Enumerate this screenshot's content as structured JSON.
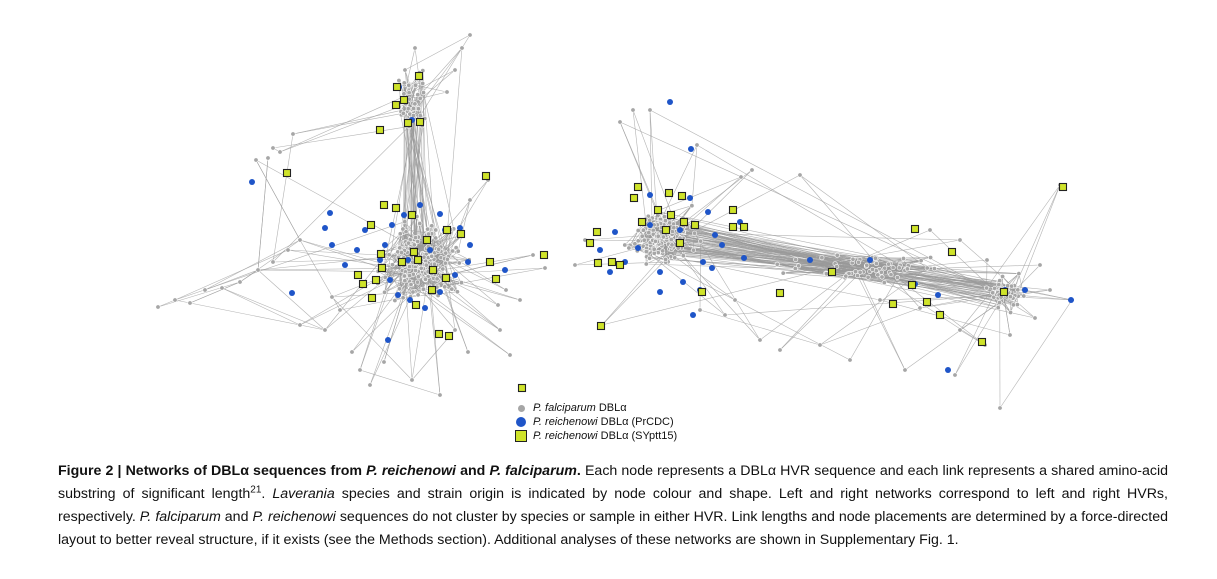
{
  "legend": {
    "items": [
      {
        "species": "P. falciparum",
        "rest": " DBLα",
        "color": "#a6a6a6",
        "shape": "circle-small"
      },
      {
        "species": "P. reichenowi",
        "rest": " DBLα (PrCDC)",
        "color": "#1f55c8",
        "shape": "circle"
      },
      {
        "species": "P. reichenowi",
        "rest": " DBLα (SYptt15)",
        "color": "#cfe32a",
        "shape": "square"
      }
    ]
  },
  "caption": {
    "figure_label": "Figure 2 | Networks of DBLα sequences from ",
    "title_sp1": "P. reichenowi",
    "title_and": " and ",
    "title_sp2": "P. falciparum",
    "title_end": ".",
    "t1": " Each node represents a DBLα HVR sequence and each link represents a shared amino-acid substring of significant length",
    "ref": "21",
    "t2": ". ",
    "laverania": "Laverania",
    "t3": " species and strain origin is indicated by node colour and shape. Left and right networks correspond to left and right HVRs, respectively. ",
    "pf": "P. falciparum",
    "t4": " and ",
    "pr": "P. reichenowi",
    "t5": " sequences do not cluster by species or sample in either HVR. Link lengths and node placements are determined by a force-directed layout to better reveal structure, if it exists (see the Methods section). Additional analyses of these networks are shown in Supplementary Fig. 1."
  },
  "colors": {
    "grey_node": "#a6a6a6",
    "blue_node": "#1f55c8",
    "yellow_node": "#cfe32a",
    "edge": "#9a9a9a"
  }
}
